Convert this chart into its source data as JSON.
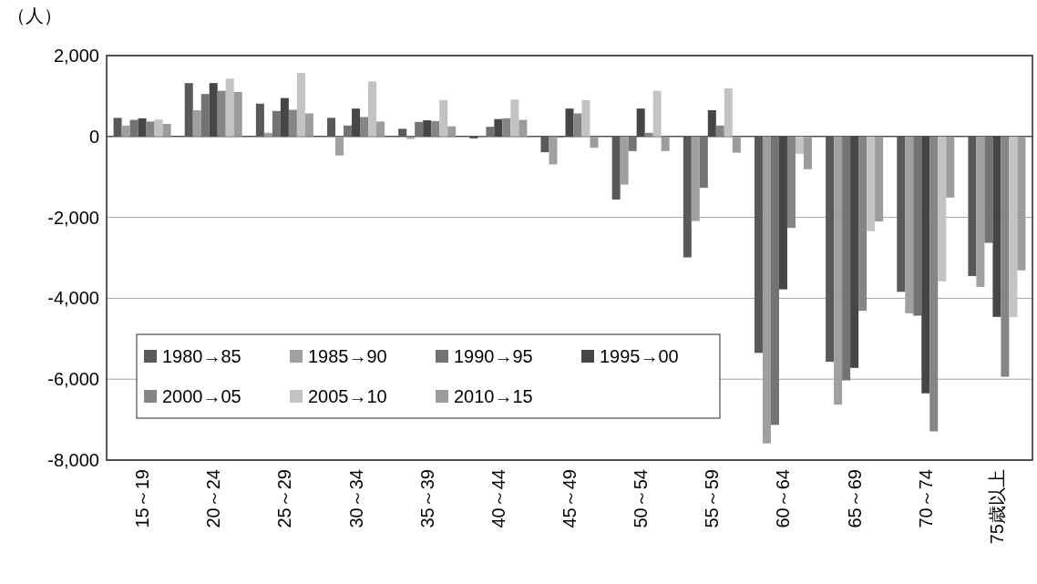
{
  "chart_data": {
    "type": "bar",
    "ylabel": "（人）",
    "categories": [
      "15～19",
      "20～24",
      "25～29",
      "30～34",
      "35～39",
      "40～44",
      "45～49",
      "50～54",
      "55～59",
      "60～64",
      "65～69",
      "70～74",
      "75歳以上"
    ],
    "series": [
      {
        "name": "1980→85",
        "color": "#595959",
        "values": [
          460,
          1320,
          810,
          460,
          190,
          -50,
          -390,
          -1560,
          -2990,
          -5350,
          -5570,
          -3840,
          -3450
        ]
      },
      {
        "name": "1985→90",
        "color": "#a0a0a0",
        "values": [
          270,
          650,
          90,
          -470,
          -60,
          -30,
          -690,
          -1190,
          -2090,
          -7590,
          -6630,
          -4370,
          -3720
        ]
      },
      {
        "name": "1990→95",
        "color": "#737373",
        "values": [
          410,
          1050,
          630,
          270,
          360,
          240,
          -20,
          -360,
          -1270,
          -7130,
          -6030,
          -4430,
          -2630
        ]
      },
      {
        "name": "1995→00",
        "color": "#464646",
        "values": [
          450,
          1320,
          950,
          690,
          400,
          430,
          690,
          690,
          650,
          -3780,
          -5720,
          -6350,
          -4460
        ]
      },
      {
        "name": "2000→05",
        "color": "#858585",
        "values": [
          370,
          1130,
          660,
          480,
          380,
          450,
          570,
          90,
          270,
          -2260,
          -4310,
          -7290,
          -5940
        ]
      },
      {
        "name": "2005→10",
        "color": "#c3c3c3",
        "values": [
          420,
          1430,
          1570,
          1360,
          900,
          910,
          900,
          1130,
          1190,
          -430,
          -2340,
          -3580,
          -4460
        ]
      },
      {
        "name": "2010→15",
        "color": "#9c9c9c",
        "values": [
          310,
          1100,
          570,
          370,
          250,
          410,
          -280,
          -360,
          -400,
          -810,
          -2100,
          -1510,
          -3310
        ]
      }
    ],
    "ylim": [
      -8000,
      2000
    ],
    "yticks": [
      {
        "value": -8000,
        "label": "-8,000"
      },
      {
        "value": -6000,
        "label": "-6,000"
      },
      {
        "value": -4000,
        "label": "-4,000"
      },
      {
        "value": -2000,
        "label": "-2,000"
      },
      {
        "value": 0,
        "label": "0"
      },
      {
        "value": 2000,
        "label": "2,000"
      }
    ],
    "grid": "y",
    "legend": "bottom left"
  }
}
